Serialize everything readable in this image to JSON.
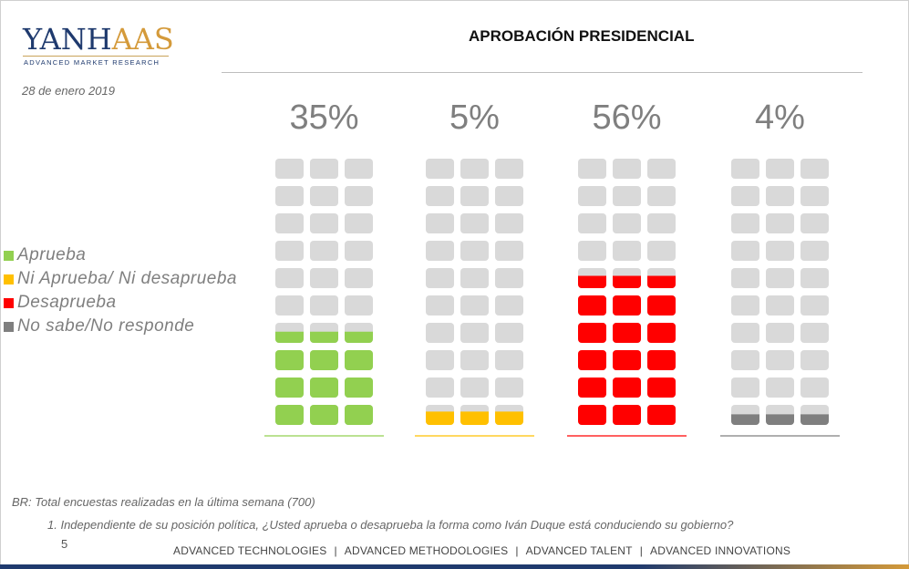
{
  "header": {
    "logo_text": "YANHAAS",
    "logo_tagline": "ADVANCED MARKET RESEARCH",
    "date": "28 de enero 2019",
    "title": "APROBACIÓN PRESIDENCIAL"
  },
  "chart_data": {
    "type": "waffle",
    "title": "APROBACIÓN PRESIDENCIAL",
    "categories": [
      "Aprueba",
      "Ni Aprueba/ Ni desaprueba",
      "Desaprueba",
      "No sabe/No responde"
    ],
    "values": [
      35,
      5,
      56,
      4
    ],
    "value_labels": [
      "35%",
      "5%",
      "56%",
      "4%"
    ],
    "units": "%",
    "grid_rows": 10,
    "grid_cols": 3,
    "colors": [
      "#92d050",
      "#ffc000",
      "#ff0000",
      "#7f7f7f"
    ],
    "empty_color": "#d9d9d9",
    "legend_position": "left"
  },
  "legend": [
    {
      "label": "Aprueba",
      "color": "#92d050"
    },
    {
      "label": "Ni Aprueba/ Ni desaprueba",
      "color": "#ffc000"
    },
    {
      "label": "Desaprueba",
      "color": "#ff0000"
    },
    {
      "label": "No sabe/No responde",
      "color": "#7f7f7f"
    }
  ],
  "notes": {
    "base": "BR: Total encuestas realizadas en la última semana (700)",
    "question": "1. Independiente de su posición política, ¿Usted aprueba o desaprueba la forma como Iván Duque está conduciendo su gobierno?",
    "page_number": "5"
  },
  "footer": {
    "items": [
      "ADVANCED TECHNOLOGIES",
      "ADVANCED METHODOLOGIES",
      "ADVANCED TALENT",
      "ADVANCED INNOVATIONS"
    ],
    "separator": "|"
  }
}
